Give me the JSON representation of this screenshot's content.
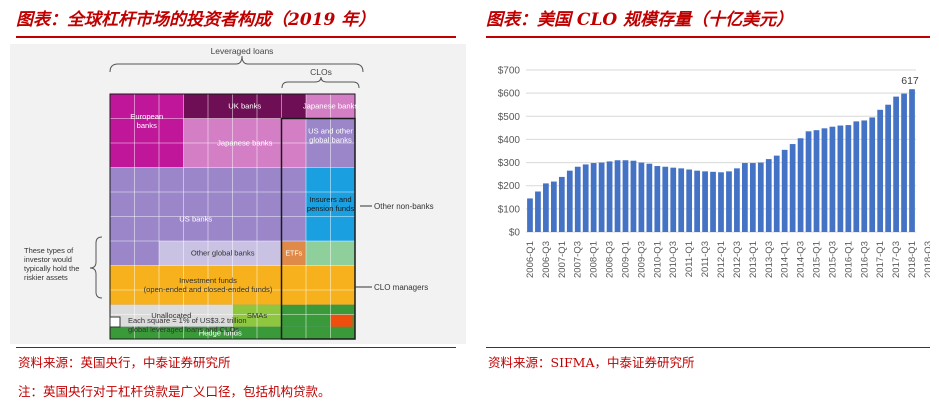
{
  "left_panel": {
    "title": "图表：全球杠杆市场的投资者构成（2019 年）",
    "waffle": {
      "bracket_leveraged_loans": "Leveraged loans",
      "bracket_clos": "CLOs",
      "cells": [
        {
          "label": "European banks",
          "color": "#c0169a",
          "text_color": "#ffffff"
        },
        {
          "label": "UK banks",
          "color": "#6e0f55",
          "text_color": "#ffffff"
        },
        {
          "label": "Japanese banks",
          "color": "#d47fc5",
          "text_color": "#ffffff"
        },
        {
          "label": "Japanese banks",
          "color": "#d47fc5",
          "text_color": "#ffffff"
        },
        {
          "label": "US and other global banks",
          "color": "#9a86c9",
          "text_color": "#ffffff"
        },
        {
          "label": "US banks",
          "color": "#9a86c9",
          "text_color": "#ffffff"
        },
        {
          "label": "Insurers and pension funds",
          "color": "#1a9fe0",
          "text_color": "#1a1a1a"
        },
        {
          "label": "Other global banks",
          "color": "#c9c2e3",
          "text_color": "#333333"
        },
        {
          "label": "ETFs",
          "color": "#e08a4a",
          "text_color": "#ffffff"
        },
        {
          "label": "Investment funds (open-ended and closed-ended funds)",
          "color": "#f6b11c",
          "text_color": "#333333"
        },
        {
          "label": "Unallocated",
          "color": "#dcdcdc",
          "text_color": "#333333"
        },
        {
          "label": "SMAs",
          "color": "#8ec63f",
          "text_color": "#333333"
        },
        {
          "label": "Hedge funds",
          "color": "#3a9a3a",
          "text_color": "#ffffff"
        }
      ],
      "side_labels": {
        "other_non_banks": "Other non-banks",
        "clo_managers": "CLO managers",
        "left_note": "These types of investor would typically hold the riskier assets"
      },
      "legend_note": "Each square = 1% of US$3.2 trillion global leveraged loans and CLOs"
    },
    "source": "资料来源：英国央行，中泰证券研究所",
    "footnote": "注：英国央行对于杠杆贷款是广义口径，包括机构贷款。"
  },
  "right_panel": {
    "title": "图表：美国 CLO 规模存量（十亿美元）",
    "source": "资料来源：SIFMA，中泰证券研究所"
  },
  "chart_data": {
    "type": "bar",
    "title": "",
    "xlabel": "",
    "ylabel": "",
    "ylim": [
      0,
      700
    ],
    "y_ticks": [
      "$0",
      "$100",
      "$200",
      "$300",
      "$400",
      "$500",
      "$600",
      "$700"
    ],
    "grid": true,
    "bar_color": "#4472c4",
    "x_tick_labels": [
      "2006-Q1",
      "2006-Q3",
      "2007-Q1",
      "2007-Q3",
      "2008-Q1",
      "2008-Q3",
      "2009-Q1",
      "2009-Q3",
      "2010-Q1",
      "2010-Q3",
      "2011-Q1",
      "2011-Q3",
      "2012-Q1",
      "2012-Q3",
      "2013-Q1",
      "2013-Q3",
      "2014-Q1",
      "2014-Q3",
      "2015-Q1",
      "2015-Q3",
      "2016-Q1",
      "2016-Q3",
      "2017-Q1",
      "2017-Q3",
      "2018-Q1",
      "2018-Q3"
    ],
    "values": [
      145,
      175,
      210,
      218,
      238,
      265,
      282,
      292,
      298,
      300,
      305,
      310,
      310,
      308,
      300,
      295,
      285,
      282,
      278,
      275,
      270,
      265,
      262,
      260,
      258,
      262,
      275,
      298,
      298,
      300,
      315,
      330,
      355,
      380,
      405,
      435,
      440,
      448,
      455,
      460,
      462,
      478,
      482,
      495,
      528,
      550,
      585,
      598,
      617
    ],
    "data_labels": [
      {
        "index": 48,
        "text": "617"
      }
    ]
  }
}
